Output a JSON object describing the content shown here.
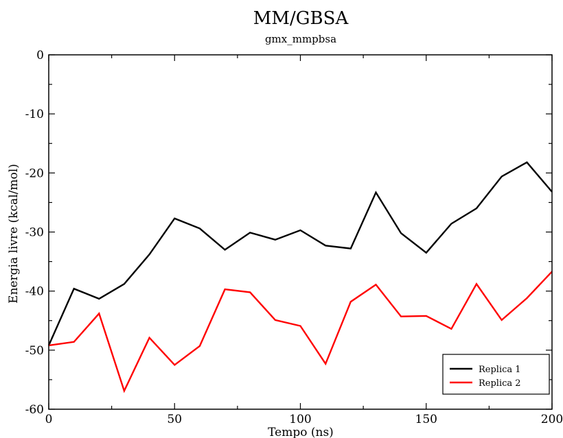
{
  "chart_data": {
    "type": "line",
    "title": "MM/GBSA",
    "subtitle": "gmx_mmpbsa",
    "xlabel": "Tempo (ns)",
    "ylabel": "Energia livre (kcal/mol)",
    "xlim": [
      0,
      200
    ],
    "ylim": [
      -60,
      0
    ],
    "xticks": [
      0,
      50,
      100,
      150,
      200
    ],
    "yticks": [
      0,
      -10,
      -20,
      -30,
      -40,
      -50,
      -60
    ],
    "grid": false,
    "legend_position": "bottom-right",
    "series": [
      {
        "name": "Replica 1",
        "color": "#000000",
        "x": [
          0,
          10,
          20,
          30,
          40,
          50,
          60,
          70,
          80,
          90,
          100,
          110,
          120,
          130,
          140,
          150,
          160,
          170,
          180,
          190,
          200
        ],
        "y": [
          -49.2,
          -39.6,
          -41.3,
          -38.8,
          -33.8,
          -27.7,
          -29.4,
          -33.0,
          -30.1,
          -31.3,
          -29.7,
          -32.3,
          -32.8,
          -23.3,
          -30.2,
          -33.5,
          -28.6,
          -26.0,
          -20.6,
          -18.2,
          -23.2
        ]
      },
      {
        "name": "Replica 2",
        "color": "#ff0000",
        "x": [
          0,
          10,
          20,
          30,
          40,
          50,
          60,
          70,
          80,
          90,
          100,
          110,
          120,
          130,
          140,
          150,
          160,
          170,
          180,
          190,
          200
        ],
        "y": [
          -49.2,
          -48.6,
          -43.8,
          -56.9,
          -47.9,
          -52.5,
          -49.3,
          -39.7,
          -40.2,
          -44.9,
          -45.9,
          -52.3,
          -41.8,
          -38.9,
          -44.3,
          -44.2,
          -46.4,
          -38.8,
          -44.9,
          -41.2,
          -36.7
        ]
      }
    ]
  }
}
